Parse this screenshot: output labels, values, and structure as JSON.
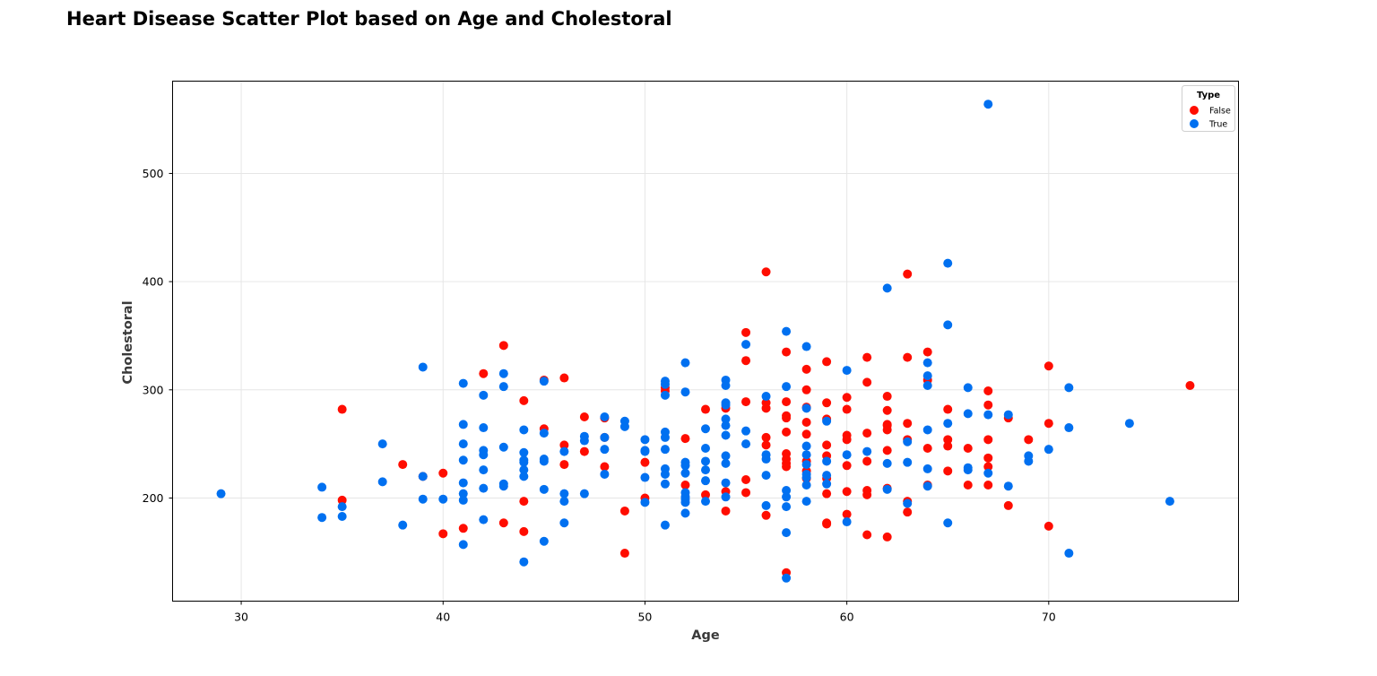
{
  "chart_data": {
    "type": "scatter",
    "title": "Heart Disease Scatter Plot based on Age and Cholestoral",
    "xlabel": "Age",
    "ylabel": "Cholestoral",
    "xlim": [
      26.6,
      79.4
    ],
    "ylim": [
      104.7,
      585.3
    ],
    "xticks": [
      30,
      40,
      50,
      60,
      70
    ],
    "yticks": [
      200,
      300,
      400,
      500
    ],
    "grid": true,
    "legend": {
      "title": "Type",
      "placement": "top-right"
    },
    "series": [
      {
        "name": "False",
        "color": "#ff0d00",
        "points": [
          [
            35,
            282
          ],
          [
            35,
            198
          ],
          [
            38,
            231
          ],
          [
            39,
            220
          ],
          [
            40,
            223
          ],
          [
            40,
            167
          ],
          [
            41,
            172
          ],
          [
            42,
            315
          ],
          [
            43,
            341
          ],
          [
            43,
            177
          ],
          [
            44,
            290
          ],
          [
            44,
            197
          ],
          [
            44,
            169
          ],
          [
            45,
            264
          ],
          [
            45,
            309
          ],
          [
            46,
            311
          ],
          [
            46,
            249
          ],
          [
            46,
            231
          ],
          [
            47,
            275
          ],
          [
            47,
            243
          ],
          [
            48,
            274
          ],
          [
            48,
            229
          ],
          [
            48,
            256
          ],
          [
            49,
            188
          ],
          [
            49,
            149
          ],
          [
            50,
            233
          ],
          [
            50,
            200
          ],
          [
            51,
            302
          ],
          [
            51,
            299
          ],
          [
            52,
            255
          ],
          [
            52,
            212
          ],
          [
            53,
            282
          ],
          [
            53,
            203
          ],
          [
            54,
            283
          ],
          [
            54,
            206
          ],
          [
            54,
            188
          ],
          [
            55,
            353
          ],
          [
            55,
            327
          ],
          [
            55,
            289
          ],
          [
            55,
            217
          ],
          [
            55,
            205
          ],
          [
            56,
            409
          ],
          [
            56,
            288
          ],
          [
            56,
            283
          ],
          [
            56,
            256
          ],
          [
            56,
            249
          ],
          [
            56,
            184
          ],
          [
            57,
            335
          ],
          [
            57,
            289
          ],
          [
            57,
            276
          ],
          [
            57,
            274
          ],
          [
            57,
            261
          ],
          [
            57,
            241
          ],
          [
            57,
            236
          ],
          [
            57,
            232
          ],
          [
            57,
            229
          ],
          [
            57,
            131
          ],
          [
            58,
            319
          ],
          [
            58,
            300
          ],
          [
            58,
            284
          ],
          [
            58,
            270
          ],
          [
            58,
            259
          ],
          [
            58,
            234
          ],
          [
            58,
            225
          ],
          [
            58,
            218
          ],
          [
            59,
            326
          ],
          [
            59,
            288
          ],
          [
            59,
            273
          ],
          [
            59,
            249
          ],
          [
            59,
            239
          ],
          [
            59,
            218
          ],
          [
            59,
            204
          ],
          [
            59,
            177
          ],
          [
            59,
            176
          ],
          [
            60,
            293
          ],
          [
            60,
            282
          ],
          [
            60,
            258
          ],
          [
            60,
            254
          ],
          [
            60,
            230
          ],
          [
            60,
            206
          ],
          [
            60,
            185
          ],
          [
            61,
            330
          ],
          [
            61,
            307
          ],
          [
            61,
            260
          ],
          [
            61,
            234
          ],
          [
            61,
            207
          ],
          [
            61,
            203
          ],
          [
            61,
            166
          ],
          [
            62,
            294
          ],
          [
            62,
            281
          ],
          [
            62,
            268
          ],
          [
            62,
            267
          ],
          [
            62,
            263
          ],
          [
            62,
            244
          ],
          [
            62,
            209
          ],
          [
            62,
            164
          ],
          [
            63,
            407
          ],
          [
            63,
            330
          ],
          [
            63,
            269
          ],
          [
            63,
            254
          ],
          [
            63,
            197
          ],
          [
            63,
            187
          ],
          [
            64,
            335
          ],
          [
            64,
            309
          ],
          [
            64,
            246
          ],
          [
            64,
            212
          ],
          [
            65,
            282
          ],
          [
            65,
            254
          ],
          [
            65,
            248
          ],
          [
            65,
            225
          ],
          [
            66,
            246
          ],
          [
            66,
            212
          ],
          [
            67,
            299
          ],
          [
            67,
            286
          ],
          [
            67,
            254
          ],
          [
            67,
            237
          ],
          [
            67,
            229
          ],
          [
            67,
            212
          ],
          [
            68,
            274
          ],
          [
            68,
            193
          ],
          [
            69,
            254
          ],
          [
            70,
            322
          ],
          [
            70,
            269
          ],
          [
            70,
            174
          ],
          [
            77,
            304
          ]
        ]
      },
      {
        "name": "True",
        "color": "#0070f0",
        "points": [
          [
            29,
            204
          ],
          [
            34,
            210
          ],
          [
            34,
            182
          ],
          [
            35,
            192
          ],
          [
            35,
            183
          ],
          [
            37,
            250
          ],
          [
            37,
            215
          ],
          [
            38,
            175
          ],
          [
            39,
            321
          ],
          [
            39,
            220
          ],
          [
            39,
            199
          ],
          [
            40,
            199
          ],
          [
            41,
            306
          ],
          [
            41,
            268
          ],
          [
            41,
            250
          ],
          [
            41,
            235
          ],
          [
            41,
            214
          ],
          [
            41,
            204
          ],
          [
            41,
            198
          ],
          [
            41,
            157
          ],
          [
            42,
            295
          ],
          [
            42,
            265
          ],
          [
            42,
            244
          ],
          [
            42,
            240
          ],
          [
            42,
            226
          ],
          [
            42,
            209
          ],
          [
            42,
            180
          ],
          [
            43,
            315
          ],
          [
            43,
            303
          ],
          [
            43,
            247
          ],
          [
            43,
            213
          ],
          [
            43,
            211
          ],
          [
            44,
            263
          ],
          [
            44,
            242
          ],
          [
            44,
            235
          ],
          [
            44,
            233
          ],
          [
            44,
            226
          ],
          [
            44,
            220
          ],
          [
            44,
            141
          ],
          [
            45,
            308
          ],
          [
            45,
            260
          ],
          [
            45,
            236
          ],
          [
            45,
            234
          ],
          [
            45,
            208
          ],
          [
            45,
            160
          ],
          [
            46,
            243
          ],
          [
            46,
            204
          ],
          [
            46,
            197
          ],
          [
            46,
            177
          ],
          [
            47,
            257
          ],
          [
            47,
            253
          ],
          [
            47,
            204
          ],
          [
            48,
            275
          ],
          [
            48,
            256
          ],
          [
            48,
            245
          ],
          [
            48,
            222
          ],
          [
            49,
            271
          ],
          [
            49,
            266
          ],
          [
            50,
            254
          ],
          [
            50,
            244
          ],
          [
            50,
            243
          ],
          [
            50,
            219
          ],
          [
            50,
            196
          ],
          [
            51,
            308
          ],
          [
            51,
            305
          ],
          [
            51,
            295
          ],
          [
            51,
            261
          ],
          [
            51,
            256
          ],
          [
            51,
            245
          ],
          [
            51,
            227
          ],
          [
            51,
            222
          ],
          [
            51,
            213
          ],
          [
            51,
            175
          ],
          [
            52,
            325
          ],
          [
            52,
            298
          ],
          [
            52,
            233
          ],
          [
            52,
            230
          ],
          [
            52,
            223
          ],
          [
            52,
            205
          ],
          [
            52,
            201
          ],
          [
            52,
            199
          ],
          [
            52,
            196
          ],
          [
            52,
            186
          ],
          [
            53,
            264
          ],
          [
            53,
            246
          ],
          [
            53,
            234
          ],
          [
            53,
            226
          ],
          [
            53,
            216
          ],
          [
            53,
            197
          ],
          [
            54,
            309
          ],
          [
            54,
            304
          ],
          [
            54,
            288
          ],
          [
            54,
            286
          ],
          [
            54,
            273
          ],
          [
            54,
            267
          ],
          [
            54,
            258
          ],
          [
            54,
            239
          ],
          [
            54,
            232
          ],
          [
            54,
            214
          ],
          [
            54,
            201
          ],
          [
            55,
            342
          ],
          [
            55,
            262
          ],
          [
            55,
            250
          ],
          [
            56,
            294
          ],
          [
            56,
            240
          ],
          [
            56,
            236
          ],
          [
            56,
            221
          ],
          [
            56,
            193
          ],
          [
            57,
            354
          ],
          [
            57,
            303
          ],
          [
            57,
            207
          ],
          [
            57,
            201
          ],
          [
            57,
            192
          ],
          [
            57,
            168
          ],
          [
            57,
            126
          ],
          [
            58,
            340
          ],
          [
            58,
            283
          ],
          [
            58,
            248
          ],
          [
            58,
            240
          ],
          [
            58,
            231
          ],
          [
            58,
            222
          ],
          [
            58,
            219
          ],
          [
            58,
            212
          ],
          [
            58,
            197
          ],
          [
            59,
            271
          ],
          [
            59,
            234
          ],
          [
            59,
            221
          ],
          [
            59,
            213
          ],
          [
            60,
            318
          ],
          [
            60,
            240
          ],
          [
            60,
            178
          ],
          [
            61,
            243
          ],
          [
            62,
            394
          ],
          [
            62,
            232
          ],
          [
            62,
            208
          ],
          [
            63,
            252
          ],
          [
            63,
            233
          ],
          [
            63,
            195
          ],
          [
            64,
            325
          ],
          [
            64,
            313
          ],
          [
            64,
            304
          ],
          [
            64,
            263
          ],
          [
            64,
            227
          ],
          [
            64,
            211
          ],
          [
            65,
            417
          ],
          [
            65,
            360
          ],
          [
            65,
            269
          ],
          [
            65,
            177
          ],
          [
            66,
            302
          ],
          [
            66,
            278
          ],
          [
            66,
            228
          ],
          [
            66,
            226
          ],
          [
            67,
            564
          ],
          [
            67,
            277
          ],
          [
            67,
            223
          ],
          [
            68,
            277
          ],
          [
            68,
            211
          ],
          [
            69,
            239
          ],
          [
            69,
            234
          ],
          [
            70,
            245
          ],
          [
            71,
            302
          ],
          [
            71,
            265
          ],
          [
            71,
            149
          ],
          [
            74,
            269
          ],
          [
            76,
            197
          ]
        ]
      }
    ]
  }
}
